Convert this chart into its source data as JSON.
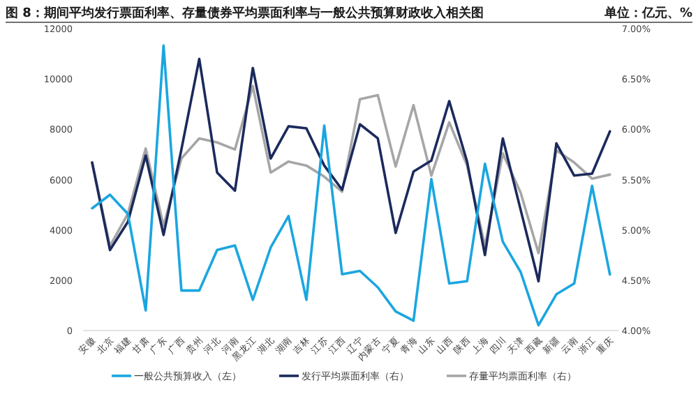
{
  "chart_data": {
    "type": "line",
    "title": "图 8：期间平均发行票面利率、存量债券平均票面利率与一般公共预算财政收入相关图",
    "subtitle": "单位：亿元、%",
    "categories": [
      "安徽",
      "北京",
      "福建",
      "甘肃",
      "广东",
      "广西",
      "贵州",
      "河北",
      "河南",
      "黑龙江",
      "湖北",
      "湖南",
      "吉林",
      "江苏",
      "江西",
      "辽宁",
      "内蒙古",
      "宁夏",
      "青海",
      "山东",
      "山西",
      "陕西",
      "上海",
      "四川",
      "天津",
      "西藏",
      "新疆",
      "云南",
      "浙江",
      "重庆"
    ],
    "series": [
      {
        "name": "一般公共预算收入（左）",
        "color": "#1aa6e0",
        "values": [
          4860,
          5400,
          4640,
          800,
          11330,
          1590,
          1590,
          3200,
          3380,
          1220,
          3300,
          4550,
          1220,
          8150,
          2240,
          2370,
          1720,
          760,
          390,
          6020,
          1870,
          1960,
          6630,
          3530,
          2330,
          210,
          1440,
          1870,
          5750,
          2230
        ]
      },
      {
        "name": "发行平均票面利率（右）",
        "color": "#1b2a5c",
        "axis": "y2",
        "values": [
          5.67,
          4.8,
          5.08,
          5.74,
          4.95,
          5.8,
          6.7,
          5.57,
          5.39,
          6.61,
          5.71,
          6.03,
          6.01,
          5.64,
          5.4,
          6.05,
          5.91,
          4.97,
          5.58,
          5.69,
          6.28,
          5.68,
          4.75,
          5.91,
          5.2,
          4.49,
          5.86,
          5.54,
          5.56,
          5.98
        ]
      },
      {
        "name": "存量平均票面利率（右）",
        "color": "#a6a6a6",
        "axis": "y2",
        "values": [
          5.67,
          4.84,
          5.16,
          5.81,
          5.04,
          5.71,
          5.91,
          5.87,
          5.8,
          6.43,
          5.57,
          5.68,
          5.64,
          5.53,
          5.38,
          6.3,
          6.34,
          5.63,
          6.24,
          5.54,
          6.07,
          5.64,
          4.84,
          5.76,
          5.37,
          4.77,
          5.79,
          5.67,
          5.51,
          5.55
        ]
      }
    ],
    "ylim": [
      0,
      12000
    ],
    "yticks": [
      0,
      2000,
      4000,
      6000,
      8000,
      10000,
      12000
    ],
    "y2lim": [
      4,
      7
    ],
    "y2ticks": [
      {
        "value": 4,
        "label": "4.00%"
      },
      {
        "value": 4.5,
        "label": "4.50%"
      },
      {
        "value": 5,
        "label": "5.00%"
      },
      {
        "value": 5.5,
        "label": "5.50%"
      },
      {
        "value": 6,
        "label": "6.00%"
      },
      {
        "value": 6.5,
        "label": "6.50%"
      },
      {
        "value": 7,
        "label": "7.00%"
      }
    ],
    "grid": false,
    "legend": "bottom"
  }
}
